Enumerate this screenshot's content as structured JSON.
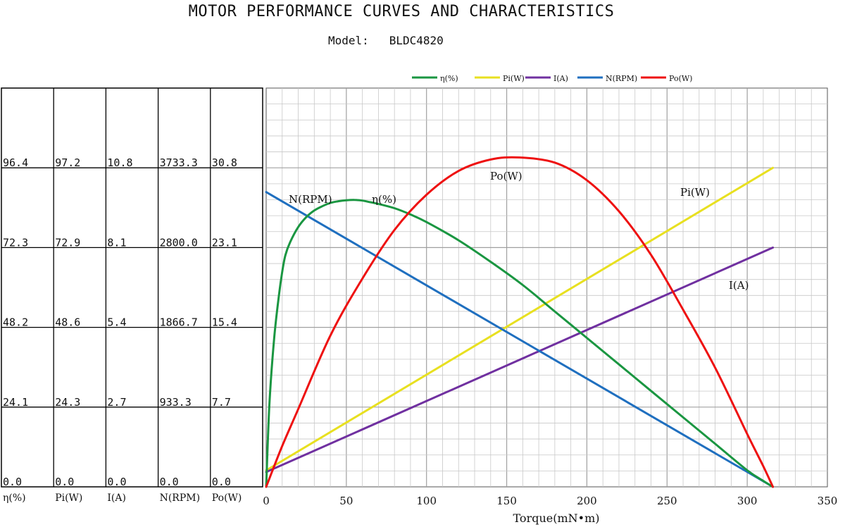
{
  "header": {
    "title": "MOTOR PERFORMANCE CURVES AND CHARACTERISTICS",
    "model_label": "Model:",
    "model_value": "BLDC4820"
  },
  "colors": {
    "eta": "#1a9641",
    "pi": "#e8e020",
    "i": "#7030a0",
    "n": "#1f6fbf",
    "po": "#ee1111",
    "grid_minor": "#c8c8c8",
    "grid_major": "#a0a0a0"
  },
  "chart_data": {
    "type": "line",
    "xlabel": "Torque(mN•m)",
    "xlim": [
      0,
      350
    ],
    "x_ticks": [
      0,
      50,
      100,
      150,
      200,
      250,
      300,
      350
    ],
    "grid": true,
    "legend_placement": "top",
    "legend": [
      "η(%)",
      "Pi(W)",
      "I(A)",
      "N(RPM)",
      "Po(W)"
    ],
    "axis_table": {
      "columns": [
        {
          "key": "eta",
          "label": "η(%)",
          "ticks": [
            "0.0",
            "24.1",
            "48.2",
            "72.3",
            "96.4"
          ]
        },
        {
          "key": "pi",
          "label": "Pi(W)",
          "ticks": [
            "0.0",
            "24.3",
            "48.6",
            "72.9",
            "97.2"
          ]
        },
        {
          "key": "i",
          "label": "I(A)",
          "ticks": [
            "0.0",
            "2.7",
            "5.4",
            "8.1",
            "10.8"
          ]
        },
        {
          "key": "n",
          "label": "N(RPM)",
          "ticks": [
            "0.0",
            "933.3",
            "1866.7",
            "2800.0",
            "3733.3"
          ]
        },
        {
          "key": "po",
          "label": "Po(W)",
          "ticks": [
            "0.0",
            "7.7",
            "15.4",
            "23.1",
            "30.8"
          ]
        }
      ],
      "axis_max": {
        "eta": 120.5,
        "pi": 121.5,
        "i": 13.5,
        "n": 4666.7,
        "po": 38.5
      }
    },
    "series": [
      {
        "key": "eta",
        "name": "η(%)",
        "curve_label": "η(%)",
        "x": [
          0,
          2,
          5,
          8,
          10,
          12,
          15,
          20,
          25,
          30,
          35,
          40,
          45,
          50,
          55,
          60,
          65,
          70,
          80,
          90,
          100,
          120,
          140,
          160,
          180,
          200,
          220,
          240,
          260,
          280,
          300,
          310,
          316
        ],
        "y": [
          0,
          25,
          45,
          58,
          65,
          70,
          74,
          78.5,
          81.5,
          83.5,
          84.8,
          85.8,
          86.3,
          86.6,
          86.7,
          86.5,
          86,
          85.5,
          84.2,
          82.3,
          80,
          74.5,
          68,
          61,
          53,
          45,
          37,
          29,
          21,
          13,
          5,
          1.8,
          0
        ]
      },
      {
        "key": "pi",
        "name": "Pi(W)",
        "curve_label": "Pi(W)",
        "x": [
          0,
          316
        ],
        "y": [
          5,
          97.2
        ]
      },
      {
        "key": "i",
        "name": "I(A)",
        "curve_label": "I(A)",
        "x": [
          0,
          316
        ],
        "y": [
          0.5,
          8.1
        ]
      },
      {
        "key": "n",
        "name": "N(RPM)",
        "curve_label": "N(RPM)",
        "x": [
          0,
          316
        ],
        "y": [
          3450,
          0
        ]
      },
      {
        "key": "po",
        "name": "Po(W)",
        "curve_label": "Po(W)",
        "x": [
          0,
          10,
          20,
          40,
          60,
          80,
          100,
          120,
          140,
          158,
          180,
          200,
          220,
          240,
          260,
          280,
          300,
          310,
          316
        ],
        "y": [
          0,
          3.95,
          7.5,
          14.6,
          20.1,
          24.8,
          28.2,
          30.5,
          31.6,
          31.8,
          31.3,
          29.6,
          26.6,
          22.4,
          17.1,
          11.5,
          5.1,
          2.0,
          0
        ]
      }
    ]
  }
}
